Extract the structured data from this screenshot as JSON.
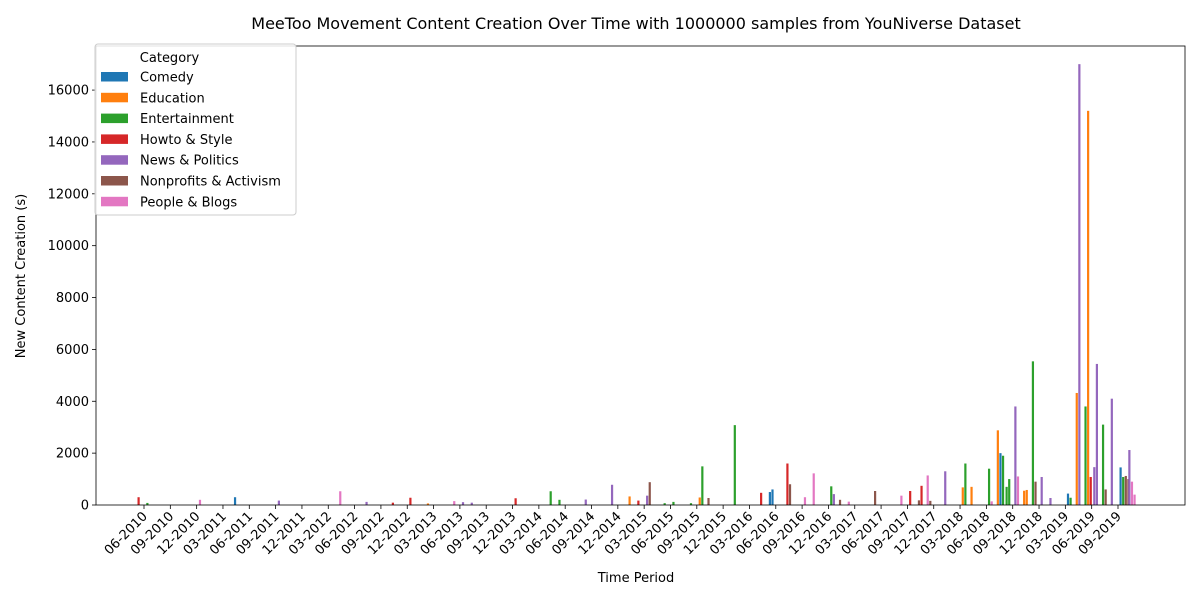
{
  "chart_data": {
    "type": "bar",
    "title": "MeeToo Movement Content Creation Over Time with 1000000 samples from YouNiverse Dataset",
    "xlabel": "Time Period",
    "ylabel": "New Content Creation (s)",
    "ylim": [
      0,
      17700
    ],
    "yticks": [
      0,
      2000,
      4000,
      6000,
      8000,
      10000,
      12000,
      14000,
      16000
    ],
    "grid": false,
    "legend": {
      "title": "Category",
      "position": "top-left"
    },
    "period_labels": [
      "06-2010",
      "09-2010",
      "12-2010",
      "03-2011",
      "06-2011",
      "09-2011",
      "12-2011",
      "03-2012",
      "06-2012",
      "09-2012",
      "12-2012",
      "03-2013",
      "06-2013",
      "09-2013",
      "12-2013",
      "03-2014",
      "06-2014",
      "09-2014",
      "12-2014",
      "03-2015",
      "06-2015",
      "09-2015",
      "12-2015",
      "03-2016",
      "06-2016",
      "09-2016",
      "12-2016",
      "03-2017",
      "06-2017",
      "09-2017",
      "12-2017",
      "03-2018",
      "06-2018",
      "09-2018",
      "12-2018",
      "03-2019",
      "06-2019",
      "09-2019"
    ],
    "series": [
      {
        "name": "Comedy",
        "color": "#1f77b4",
        "values": [
          0,
          0,
          0,
          0,
          0,
          0,
          0,
          0,
          0,
          0,
          0,
          0,
          0,
          0,
          0,
          0,
          0,
          0,
          0,
          0,
          0,
          0,
          0,
          0,
          0,
          0,
          0,
          0,
          0,
          0,
          0,
          0,
          0,
          0,
          0,
          0,
          0,
          0,
          0,
          0,
          0,
          0,
          0,
          0,
          0,
          0,
          0,
          0,
          0,
          0,
          0,
          0,
          0,
          0,
          0,
          0,
          0,
          0,
          0,
          0,
          0,
          0,
          0,
          0,
          0,
          0,
          0,
          0,
          0,
          0,
          0,
          0,
          0,
          0,
          0,
          0,
          0,
          0,
          0,
          0,
          0,
          0,
          0,
          0,
          0,
          0,
          0,
          0,
          0,
          0,
          0,
          0,
          0,
          0,
          0,
          0,
          0,
          0,
          0,
          0,
          0,
          0,
          0,
          0,
          0,
          0,
          0,
          0,
          0,
          0,
          0,
          0,
          0,
          0
        ]
      },
      {
        "name": "Education",
        "color": "#ff7f0e",
        "values": []
      },
      {
        "name": "Entertainment",
        "color": "#2ca02c",
        "values": []
      },
      {
        "name": "Howto & Style",
        "color": "#d62728",
        "values": []
      },
      {
        "name": "News & Politics",
        "color": "#9467bd",
        "values": []
      },
      {
        "name": "Nonprofits & Activism",
        "color": "#8c564b",
        "values": []
      },
      {
        "name": "People & Blogs",
        "color": "#e377c2",
        "values": []
      }
    ],
    "monthly": {
      "start": "2010-06",
      "months": 113,
      "bars": [
        {
          "month": "2010-06",
          "series": "Howto & Style",
          "value": 300
        },
        {
          "month": "2010-07",
          "series": "Entertainment",
          "value": 80
        },
        {
          "month": "2011-01",
          "series": "People & Blogs",
          "value": 200
        },
        {
          "month": "2011-05",
          "series": "Comedy",
          "value": 300
        },
        {
          "month": "2011-10",
          "series": "News & Politics",
          "value": 170
        },
        {
          "month": "2012-05",
          "series": "People & Blogs",
          "value": 530
        },
        {
          "month": "2012-08",
          "series": "News & Politics",
          "value": 120
        },
        {
          "month": "2012-11",
          "series": "Howto & Style",
          "value": 90
        },
        {
          "month": "2013-01",
          "series": "Howto & Style",
          "value": 280
        },
        {
          "month": "2013-03",
          "series": "Education",
          "value": 60
        },
        {
          "month": "2013-06",
          "series": "People & Blogs",
          "value": 150
        },
        {
          "month": "2013-07",
          "series": "News & Politics",
          "value": 110
        },
        {
          "month": "2013-08",
          "series": "News & Politics",
          "value": 90
        },
        {
          "month": "2014-01",
          "series": "Howto & Style",
          "value": 260
        },
        {
          "month": "2014-05",
          "series": "Entertainment",
          "value": 530
        },
        {
          "month": "2014-06",
          "series": "Entertainment",
          "value": 200
        },
        {
          "month": "2014-09",
          "series": "News & Politics",
          "value": 210
        },
        {
          "month": "2014-12",
          "series": "News & Politics",
          "value": 780
        },
        {
          "month": "2015-02",
          "series": "Education",
          "value": 330
        },
        {
          "month": "2015-03",
          "series": "Howto & Style",
          "value": 170
        },
        {
          "month": "2015-04",
          "series": "News & Politics",
          "value": 360
        },
        {
          "month": "2015-04",
          "series": "Nonprofits & Activism",
          "value": 880
        },
        {
          "month": "2015-06",
          "series": "Entertainment",
          "value": 70
        },
        {
          "month": "2015-07",
          "series": "Entertainment",
          "value": 120
        },
        {
          "month": "2015-09",
          "series": "Entertainment",
          "value": 70
        },
        {
          "month": "2015-10",
          "series": "Education",
          "value": 290
        },
        {
          "month": "2015-10",
          "series": "Entertainment",
          "value": 1490
        },
        {
          "month": "2015-11",
          "series": "Nonprofits & Activism",
          "value": 270
        },
        {
          "month": "2016-02",
          "series": "Entertainment",
          "value": 3080
        },
        {
          "month": "2016-05",
          "series": "Howto & Style",
          "value": 470
        },
        {
          "month": "2016-06",
          "series": "Comedy",
          "value": 500
        },
        {
          "month": "2016-06",
          "series": "Comedy",
          "value": 600
        },
        {
          "month": "2016-08",
          "series": "Howto & Style",
          "value": 1600
        },
        {
          "month": "2016-08",
          "series": "Nonprofits & Activism",
          "value": 800
        },
        {
          "month": "2016-10",
          "series": "People & Blogs",
          "value": 300
        },
        {
          "month": "2016-11",
          "series": "People & Blogs",
          "value": 1220
        },
        {
          "month": "2017-01",
          "series": "Entertainment",
          "value": 720
        },
        {
          "month": "2017-01",
          "series": "News & Politics",
          "value": 420
        },
        {
          "month": "2017-02",
          "series": "Nonprofits & Activism",
          "value": 200
        },
        {
          "month": "2017-03",
          "series": "People & Blogs",
          "value": 130
        },
        {
          "month": "2017-06",
          "series": "Nonprofits & Activism",
          "value": 540
        },
        {
          "month": "2017-09",
          "series": "People & Blogs",
          "value": 360
        },
        {
          "month": "2017-10",
          "series": "Howto & Style",
          "value": 540
        },
        {
          "month": "2017-11",
          "series": "Nonprofits & Activism",
          "value": 180
        },
        {
          "month": "2017-11",
          "series": "Howto & Style",
          "value": 740
        },
        {
          "month": "2017-12",
          "series": "People & Blogs",
          "value": 1140
        },
        {
          "month": "2017-12",
          "series": "Nonprofits & Activism",
          "value": 160
        },
        {
          "month": "2018-02",
          "series": "News & Politics",
          "value": 1300
        },
        {
          "month": "2018-04",
          "series": "Education",
          "value": 680
        },
        {
          "month": "2018-04",
          "series": "Entertainment",
          "value": 1600
        },
        {
          "month": "2018-05",
          "series": "Education",
          "value": 700
        },
        {
          "month": "2018-07",
          "series": "Entertainment",
          "value": 1400
        },
        {
          "month": "2018-07",
          "series": "People & Blogs",
          "value": 140
        },
        {
          "month": "2018-08",
          "series": "Education",
          "value": 2880
        },
        {
          "month": "2018-08",
          "series": "Comedy",
          "value": 2000
        },
        {
          "month": "2018-08",
          "series": "Entertainment",
          "value": 1900
        },
        {
          "month": "2018-09",
          "series": "Entertainment",
          "value": 700
        },
        {
          "month": "2018-09",
          "series": "Entertainment",
          "value": 1000
        },
        {
          "month": "2018-10",
          "series": "News & Politics",
          "value": 3800
        },
        {
          "month": "2018-10",
          "series": "People & Blogs",
          "value": 1100
        },
        {
          "month": "2018-11",
          "series": "Education",
          "value": 550
        },
        {
          "month": "2018-11",
          "series": "Education",
          "value": 580
        },
        {
          "month": "2018-12",
          "series": "Entertainment",
          "value": 5540
        },
        {
          "month": "2018-12",
          "series": "Nonprofits & Activism",
          "value": 900
        },
        {
          "month": "2019-01",
          "series": "News & Politics",
          "value": 1080
        },
        {
          "month": "2019-02",
          "series": "News & Politics",
          "value": 270
        },
        {
          "month": "2019-04",
          "series": "Comedy",
          "value": 440
        },
        {
          "month": "2019-04",
          "series": "Entertainment",
          "value": 280
        },
        {
          "month": "2019-05",
          "series": "Education",
          "value": 4320
        },
        {
          "month": "2019-05",
          "series": "News & Politics",
          "value": 17000
        },
        {
          "month": "2019-06",
          "series": "Entertainment",
          "value": 3800
        },
        {
          "month": "2019-06",
          "series": "Education",
          "value": 15200
        },
        {
          "month": "2019-06",
          "series": "Howto & Style",
          "value": 1080
        },
        {
          "month": "2019-07",
          "series": "News & Politics",
          "value": 1460
        },
        {
          "month": "2019-07",
          "series": "News & Politics",
          "value": 5440
        },
        {
          "month": "2019-08",
          "series": "Entertainment",
          "value": 3100
        },
        {
          "month": "2019-08",
          "series": "Nonprofits & Activism",
          "value": 600
        },
        {
          "month": "2019-09",
          "series": "News & Politics",
          "value": 4100
        },
        {
          "month": "2019-10",
          "series": "Comedy",
          "value": 1450
        },
        {
          "month": "2019-10",
          "series": "Entertainment",
          "value": 1080
        },
        {
          "month": "2019-10",
          "series": "Nonprofits & Activism",
          "value": 1120
        },
        {
          "month": "2019-10",
          "series": "Nonprofits & Activism",
          "value": 1000
        },
        {
          "month": "2019-11",
          "series": "News & Politics",
          "value": 2120
        },
        {
          "month": "2019-11",
          "series": "People & Blogs",
          "value": 900
        },
        {
          "month": "2019-11",
          "series": "People & Blogs",
          "value": 400
        }
      ]
    }
  }
}
